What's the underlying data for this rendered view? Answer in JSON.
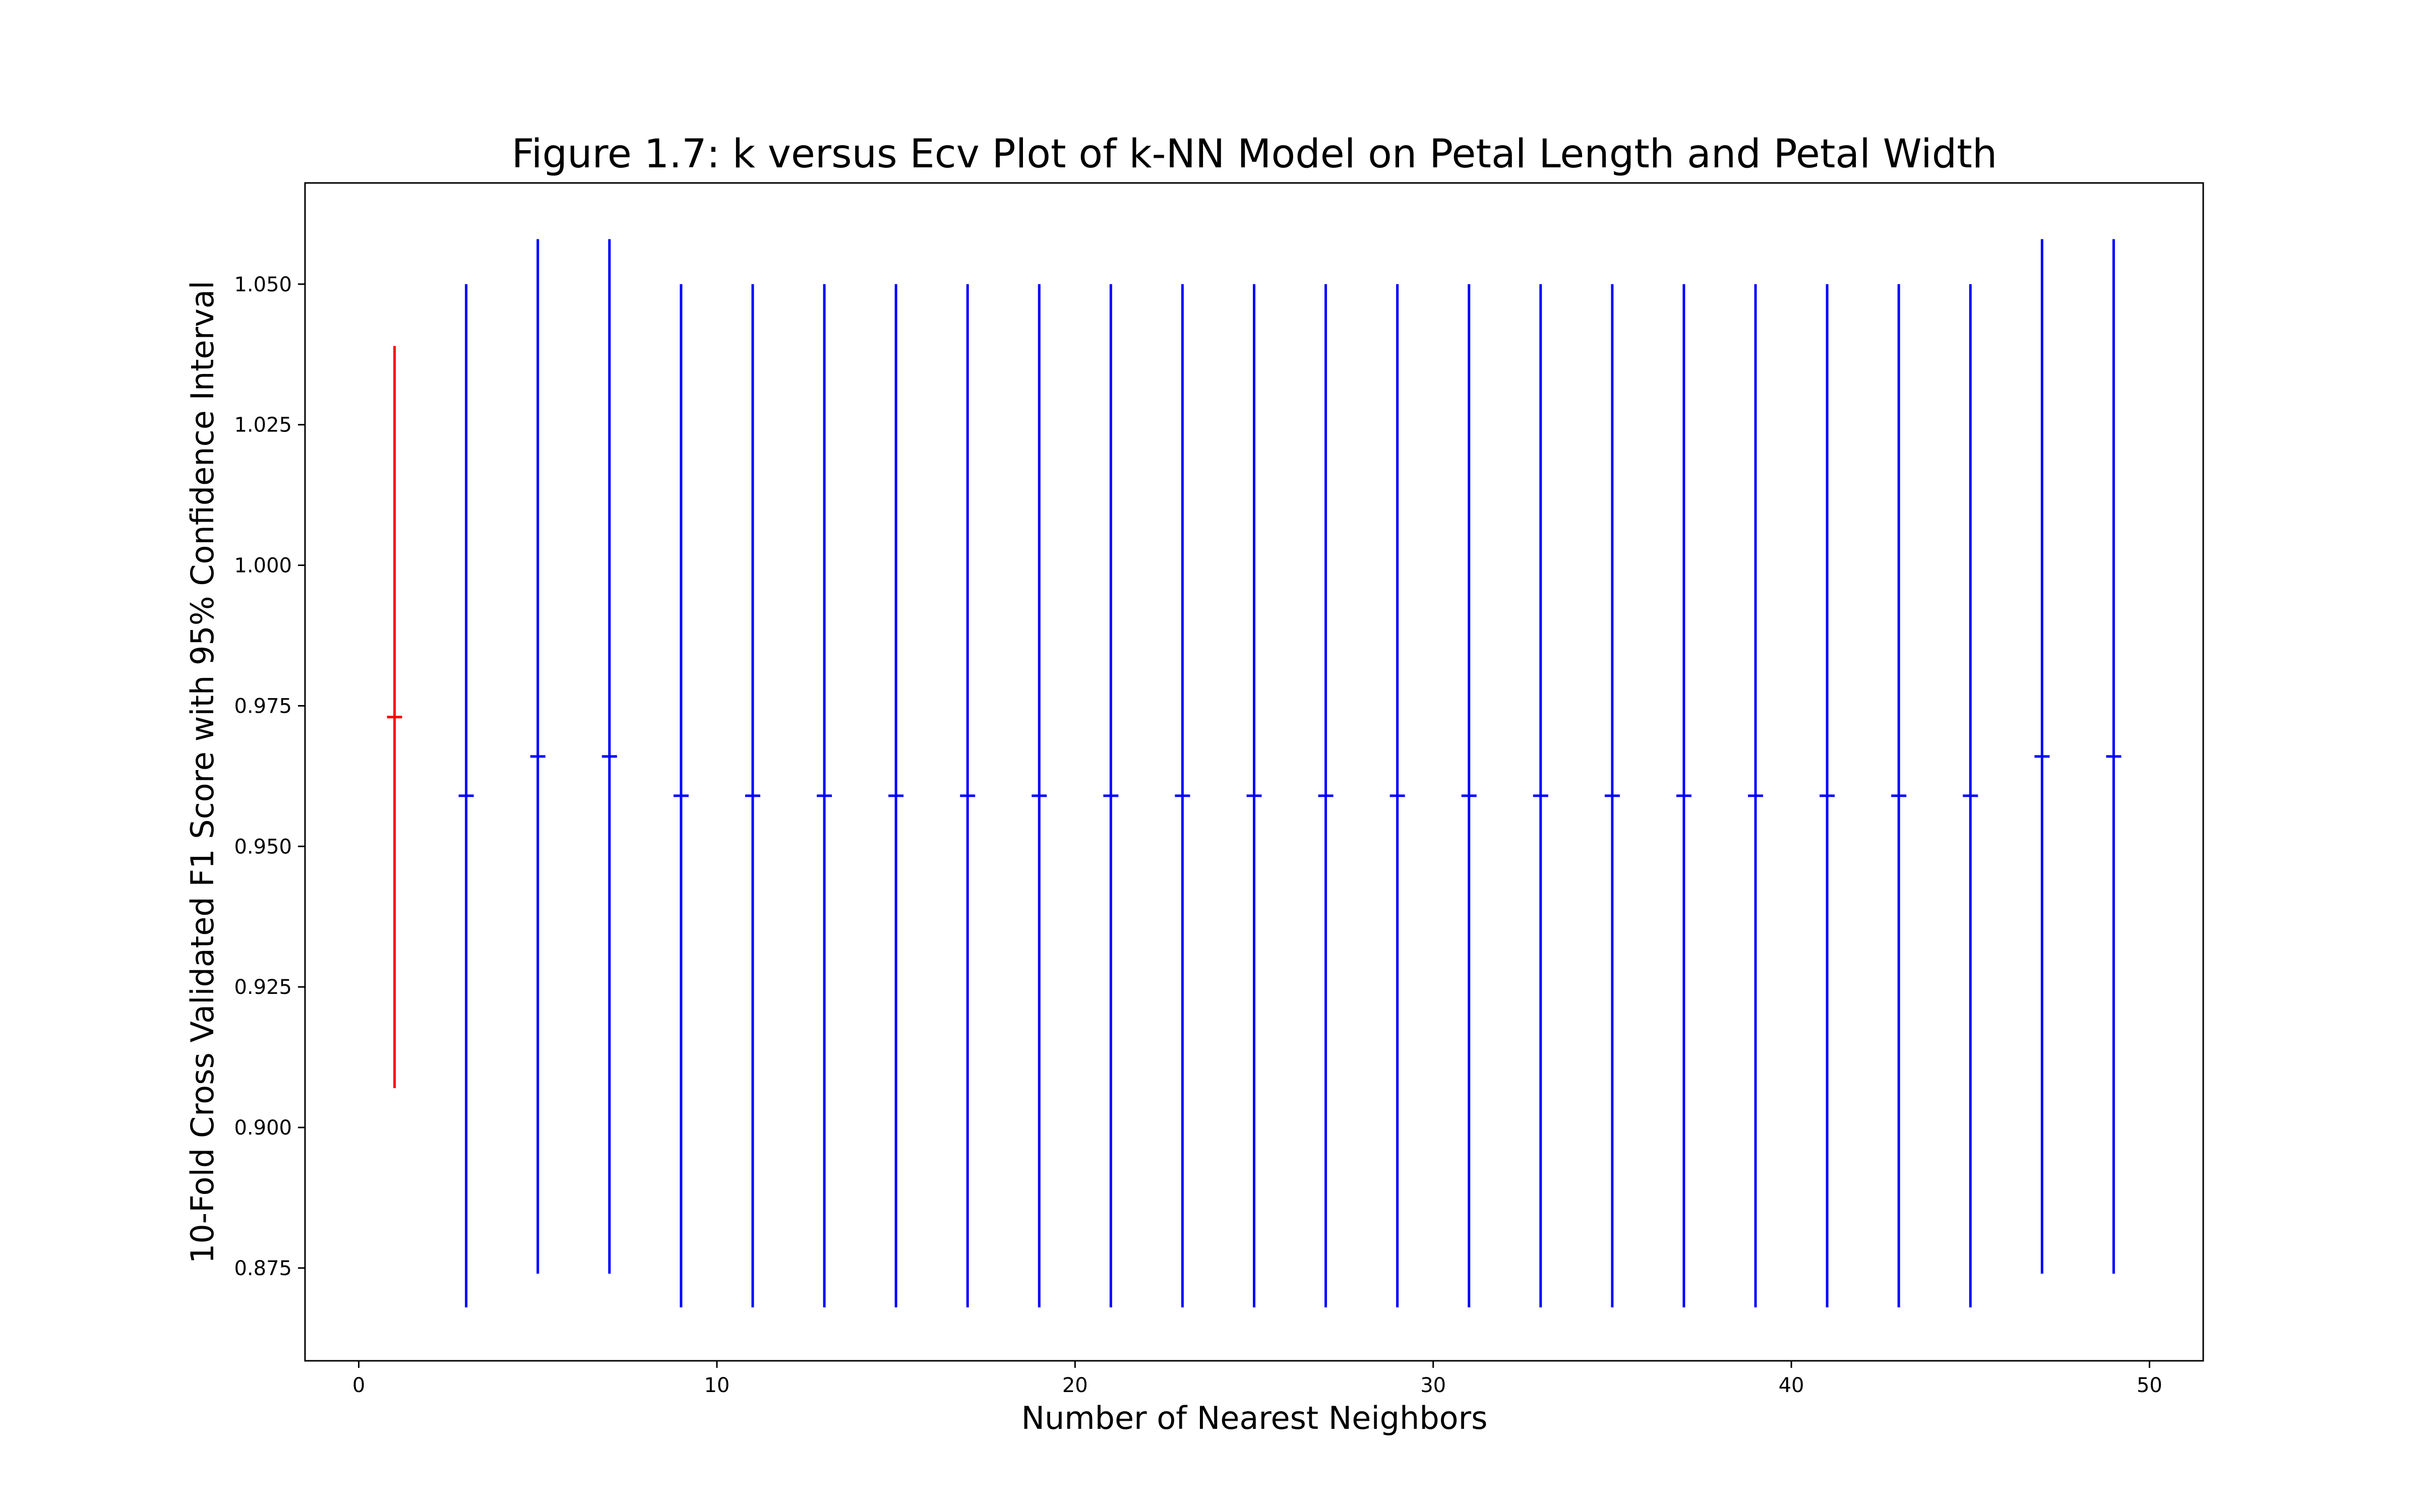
{
  "chart_data": {
    "type": "errorbar",
    "title": "Figure 1.7: k versus Ecv Plot of k-NN Model on Petal Length and Petal Width",
    "xlabel": "Number of Nearest Neighbors",
    "ylabel": "10-Fold Cross Validated F1 Score with 95% Confidence Interval",
    "xlim": [
      -1.5,
      51.5
    ],
    "ylim": [
      0.8585,
      1.068
    ],
    "grid": false,
    "xticks": [
      0,
      10,
      20,
      30,
      40,
      50
    ],
    "xtick_labels": [
      "0",
      "10",
      "20",
      "30",
      "40",
      "50"
    ],
    "yticks": [
      0.875,
      0.9,
      0.925,
      0.95,
      0.975,
      1.0,
      1.025,
      1.05
    ],
    "ytick_labels": [
      "0.875",
      "0.900",
      "0.925",
      "0.950",
      "0.975",
      "1.000",
      "1.025",
      "1.050"
    ],
    "colors": {
      "highlight": "#ff0000",
      "default": "#0000ff",
      "axes": "#000000"
    },
    "series": [
      {
        "color": "#ff0000",
        "points": [
          {
            "k": 1,
            "mean": 0.973,
            "low": 0.907,
            "high": 1.039
          }
        ]
      },
      {
        "color": "#0000ff",
        "points": [
          {
            "k": 3,
            "mean": 0.959,
            "low": 0.868,
            "high": 1.05
          },
          {
            "k": 5,
            "mean": 0.966,
            "low": 0.874,
            "high": 1.058
          },
          {
            "k": 7,
            "mean": 0.966,
            "low": 0.874,
            "high": 1.058
          },
          {
            "k": 9,
            "mean": 0.959,
            "low": 0.868,
            "high": 1.05
          },
          {
            "k": 11,
            "mean": 0.959,
            "low": 0.868,
            "high": 1.05
          },
          {
            "k": 13,
            "mean": 0.959,
            "low": 0.868,
            "high": 1.05
          },
          {
            "k": 15,
            "mean": 0.959,
            "low": 0.868,
            "high": 1.05
          },
          {
            "k": 17,
            "mean": 0.959,
            "low": 0.868,
            "high": 1.05
          },
          {
            "k": 19,
            "mean": 0.959,
            "low": 0.868,
            "high": 1.05
          },
          {
            "k": 21,
            "mean": 0.959,
            "low": 0.868,
            "high": 1.05
          },
          {
            "k": 23,
            "mean": 0.959,
            "low": 0.868,
            "high": 1.05
          },
          {
            "k": 25,
            "mean": 0.959,
            "low": 0.868,
            "high": 1.05
          },
          {
            "k": 27,
            "mean": 0.959,
            "low": 0.868,
            "high": 1.05
          },
          {
            "k": 29,
            "mean": 0.959,
            "low": 0.868,
            "high": 1.05
          },
          {
            "k": 31,
            "mean": 0.959,
            "low": 0.868,
            "high": 1.05
          },
          {
            "k": 33,
            "mean": 0.959,
            "low": 0.868,
            "high": 1.05
          },
          {
            "k": 35,
            "mean": 0.959,
            "low": 0.868,
            "high": 1.05
          },
          {
            "k": 37,
            "mean": 0.959,
            "low": 0.868,
            "high": 1.05
          },
          {
            "k": 39,
            "mean": 0.959,
            "low": 0.868,
            "high": 1.05
          },
          {
            "k": 41,
            "mean": 0.959,
            "low": 0.868,
            "high": 1.05
          },
          {
            "k": 43,
            "mean": 0.959,
            "low": 0.868,
            "high": 1.05
          },
          {
            "k": 45,
            "mean": 0.959,
            "low": 0.868,
            "high": 1.05
          },
          {
            "k": 47,
            "mean": 0.966,
            "low": 0.874,
            "high": 1.058
          },
          {
            "k": 49,
            "mean": 0.966,
            "low": 0.874,
            "high": 1.058
          }
        ]
      }
    ]
  }
}
